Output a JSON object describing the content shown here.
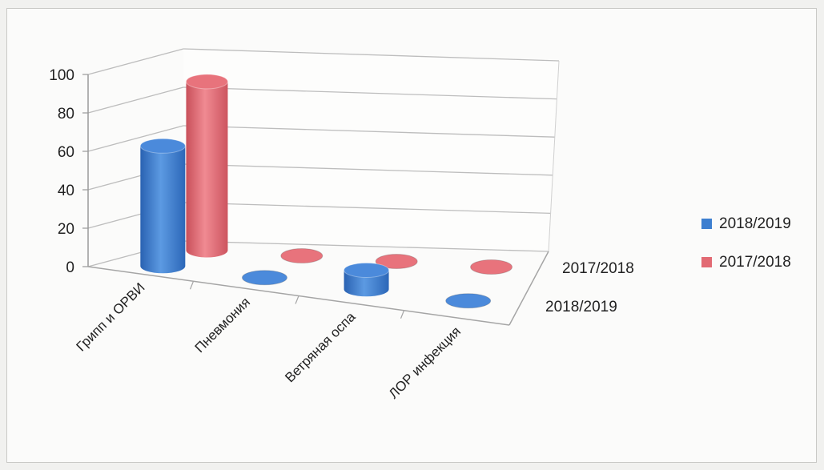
{
  "chart_data": {
    "type": "bar",
    "style": "3d-cylinder",
    "categories": [
      "Грипп и ОРВИ",
      "Пневмония",
      "Ветряная оспа",
      "ЛОР инфекция"
    ],
    "series": [
      {
        "name": "2018/2019",
        "values": [
          63,
          0,
          10,
          0
        ],
        "color": "#3d7fd0"
      },
      {
        "name": "2017/2018",
        "values": [
          90,
          0,
          0,
          0
        ],
        "color": "#e26a73"
      }
    ],
    "yticks": [
      0,
      20,
      40,
      60,
      80,
      100
    ],
    "ylim": [
      0,
      100
    ],
    "depth_labels": [
      "2017/2018",
      "2018/2019"
    ],
    "legend": {
      "position": "right",
      "items": [
        "2018/2019",
        "2017/2018"
      ]
    },
    "grid": true
  }
}
